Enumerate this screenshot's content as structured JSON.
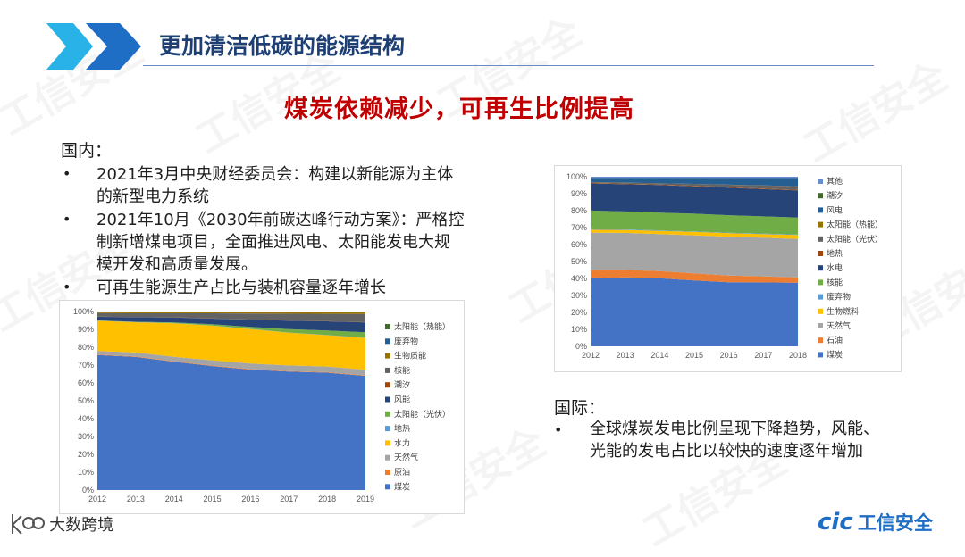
{
  "header": {
    "title": "更加清洁低碳的能源结构"
  },
  "subtitle": "煤炭依赖减少，可再生比例提高",
  "domestic": {
    "heading": "国内：",
    "bullets": [
      {
        "line1": "2021年3月中央财经委员会：构建以新能源为主体",
        "line2": "的新型电力系统"
      },
      {
        "line1": "2021年10月《2030年前碳达峰行动方案》：严格控",
        "line2": "制新增煤电项目，全面推进风电、太阳能发电大规",
        "line3": "模开发和高质量发展。"
      },
      {
        "line1": "可再生能源生产占比与装机容量逐年增长"
      }
    ]
  },
  "international": {
    "heading": "国际：",
    "bullets": [
      {
        "line1": "全球煤炭发电比例呈现下降趋势，风能、",
        "line2": "光能的发电占比以较快的速度逐年增加"
      }
    ]
  },
  "footer": {
    "left_brand": "大数跨境",
    "left_logo": "k",
    "right_brand_prefix": "cic",
    "right_brand": "工信安全"
  },
  "watermark": "工信安全",
  "colors": {
    "title": "#1d3f73",
    "subtitle": "#c00000",
    "chevron": "#2f8fd8"
  },
  "chart_data": [
    {
      "type": "area",
      "stacked": true,
      "percent": true,
      "x": [
        2012,
        2013,
        2014,
        2015,
        2016,
        2017,
        2018,
        2019
      ],
      "ylim": [
        0,
        100
      ],
      "yticks": [
        "0%",
        "10%",
        "20%",
        "30%",
        "40%",
        "50%",
        "60%",
        "70%",
        "80%",
        "90%",
        "100%"
      ],
      "legend_position": "right",
      "series": [
        {
          "name": "煤炭",
          "color": "#4472c4",
          "values": [
            76,
            75,
            73,
            70,
            68,
            67,
            66,
            64
          ]
        },
        {
          "name": "原油",
          "color": "#ed7d31",
          "values": [
            0.3,
            0.3,
            0.3,
            0.3,
            0.3,
            0.3,
            0.3,
            0.3
          ]
        },
        {
          "name": "天然气",
          "color": "#a5a5a5",
          "values": [
            2,
            2.2,
            2.5,
            3,
            3.1,
            3.2,
            3.2,
            3.2
          ]
        },
        {
          "name": "水力",
          "color": "#ffc000",
          "values": [
            17,
            17,
            19,
            19.5,
            19.5,
            18.5,
            17.6,
            17.8
          ]
        },
        {
          "name": "地热",
          "color": "#5b9bd5",
          "values": [
            0.1,
            0.1,
            0.1,
            0.1,
            0.1,
            0.1,
            0.1,
            0.1
          ]
        },
        {
          "name": "太阳能（光伏）",
          "color": "#70ad47",
          "values": [
            0.1,
            0.2,
            0.4,
            0.7,
            1.1,
            1.9,
            2.5,
            3.1
          ]
        },
        {
          "name": "风能",
          "color": "#264478",
          "values": [
            2,
            2.6,
            2.8,
            3.2,
            4,
            4.8,
            5.2,
            5.5
          ]
        },
        {
          "name": "潮汐",
          "color": "#9e480e",
          "values": [
            0.1,
            0.1,
            0.1,
            0.1,
            0.1,
            0.1,
            0.1,
            0.1
          ]
        },
        {
          "name": "核能",
          "color": "#636363",
          "values": [
            2,
            2.1,
            2.3,
            2.9,
            3.5,
            3.9,
            4.1,
            4.6
          ]
        },
        {
          "name": "生物质能",
          "color": "#997300",
          "values": [
            0.7,
            0.8,
            0.8,
            0.8,
            0.9,
            1,
            1.1,
            1.2
          ]
        },
        {
          "name": "废弃物",
          "color": "#255e91",
          "values": [
            0.2,
            0.2,
            0.2,
            0.2,
            0.2,
            0.2,
            0.2,
            0.2
          ]
        },
        {
          "name": "太阳能（热能）",
          "color": "#43682b",
          "values": [
            0.01,
            0.01,
            0.01,
            0.01,
            0.01,
            0.01,
            0.01,
            0.01
          ]
        }
      ]
    },
    {
      "type": "area",
      "stacked": true,
      "percent": true,
      "x": [
        2012,
        2013,
        2014,
        2015,
        2016,
        2017,
        2018
      ],
      "ylim": [
        0,
        100
      ],
      "yticks": [
        "0%",
        "10%",
        "20%",
        "30%",
        "40%",
        "50%",
        "60%",
        "70%",
        "80%",
        "90%",
        "100%"
      ],
      "legend_position": "right",
      "series": [
        {
          "name": "煤炭",
          "color": "#4472c4",
          "values": [
            40,
            41,
            40.5,
            39,
            38,
            38,
            38
          ]
        },
        {
          "name": "石油",
          "color": "#ed7d31",
          "values": [
            5,
            4.5,
            4.3,
            4.2,
            4,
            3.6,
            3.2
          ]
        },
        {
          "name": "天然气",
          "color": "#a5a5a5",
          "values": [
            22,
            22,
            22,
            22.5,
            23,
            23,
            23
          ]
        },
        {
          "name": "生物燃料",
          "color": "#ffc000",
          "values": [
            1.7,
            1.8,
            1.9,
            2,
            2.1,
            2.2,
            2.3
          ]
        },
        {
          "name": "废弃物",
          "color": "#5b9bd5",
          "values": [
            0.3,
            0.3,
            0.3,
            0.3,
            0.3,
            0.3,
            0.3
          ]
        },
        {
          "name": "核能",
          "color": "#70ad47",
          "values": [
            11,
            10.7,
            10.6,
            10.5,
            10.4,
            10.2,
            10.2
          ]
        },
        {
          "name": "水电",
          "color": "#264478",
          "values": [
            16,
            16.2,
            16.4,
            16.2,
            16.4,
            16.2,
            16.2
          ]
        },
        {
          "name": "地热",
          "color": "#9e480e",
          "values": [
            0.3,
            0.3,
            0.3,
            0.3,
            0.3,
            0.3,
            0.3
          ]
        },
        {
          "name": "太阳能（光伏）",
          "color": "#636363",
          "values": [
            0.5,
            0.6,
            0.8,
            1.1,
            1.4,
            1.8,
            2.2
          ]
        },
        {
          "name": "太阳能（热能）",
          "color": "#997300",
          "values": [
            0.03,
            0.03,
            0.04,
            0.04,
            0.05,
            0.05,
            0.05
          ]
        },
        {
          "name": "风电",
          "color": "#255e91",
          "values": [
            2.3,
            2.7,
            3,
            3.4,
            3.9,
            4.4,
            4.8
          ]
        },
        {
          "name": "潮汐",
          "color": "#43682b",
          "values": [
            0.01,
            0.01,
            0.01,
            0.01,
            0.01,
            0.01,
            0.01
          ]
        },
        {
          "name": "其他",
          "color": "#698ed0",
          "values": [
            0.8,
            0.8,
            0.8,
            0.8,
            0.8,
            0.8,
            0.8
          ]
        }
      ]
    }
  ]
}
